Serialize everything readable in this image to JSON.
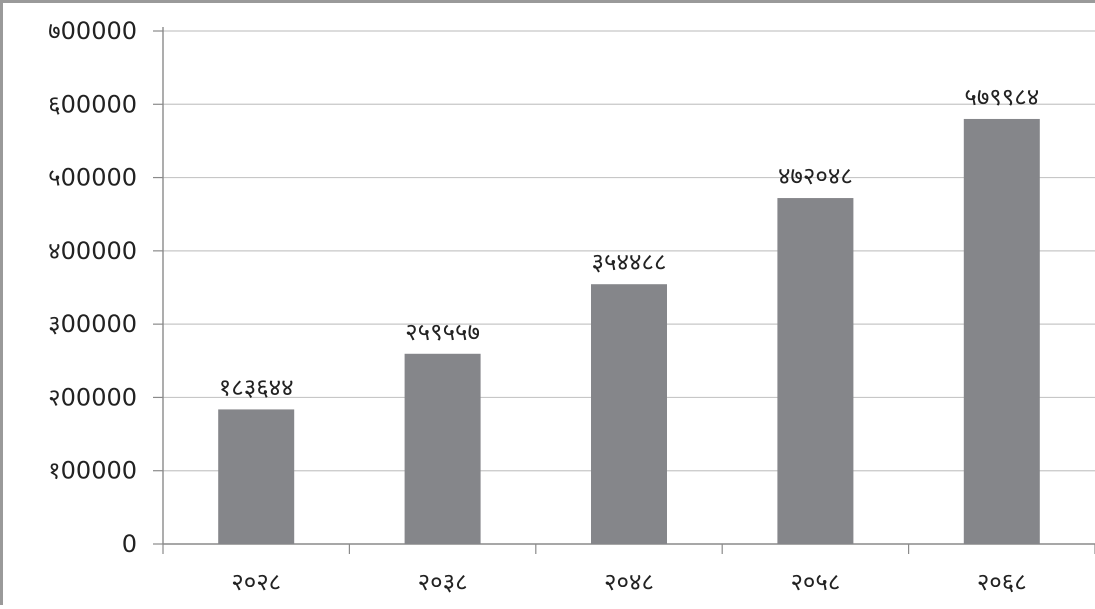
{
  "chart_data": {
    "type": "bar",
    "title": "",
    "xlabel": "",
    "ylabel": "",
    "categories": [
      "२०२८",
      "२०३८",
      "२०४८",
      "२०५८",
      "२०६८"
    ],
    "values": [
      183644,
      259557,
      354488,
      472048,
      579984
    ],
    "value_labels": [
      "१८३६४४",
      "२५९५५७",
      "३५४४८८",
      "४७२०४८",
      "५७९९८४"
    ],
    "ylim": [
      0,
      700000
    ],
    "yticks": [
      0,
      100000,
      200000,
      300000,
      400000,
      500000,
      600000,
      700000
    ],
    "ytick_labels": [
      "0",
      "१00000",
      "२00000",
      "३00000",
      "४00000",
      "५00000",
      "६00000",
      "७00000"
    ],
    "grid": true,
    "legend": "none",
    "colors": {
      "bar": "#85868a",
      "grid": "#c7c7c7",
      "axis": "#8a8a8a",
      "text": "#222222"
    }
  }
}
